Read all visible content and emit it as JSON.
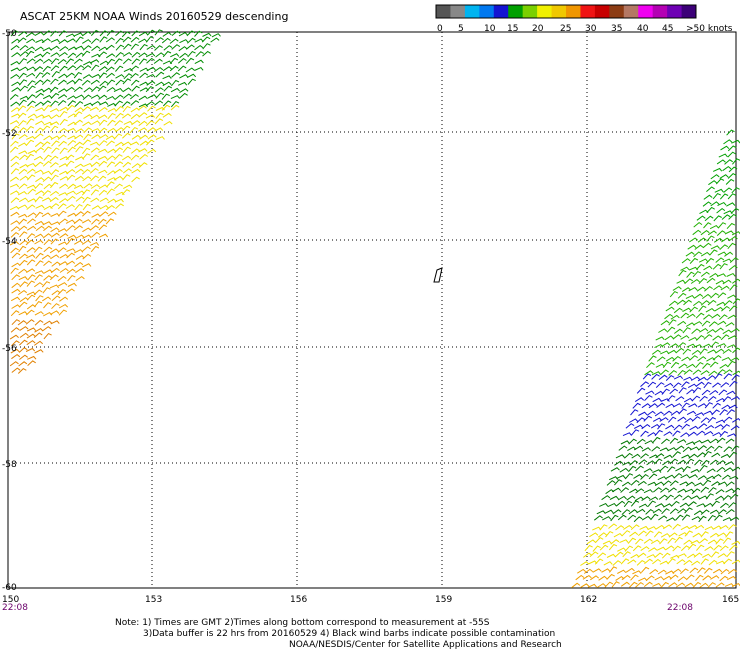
{
  "title": "ASCAT 25KM NOAA Winds 20160529 descending",
  "legend": {
    "colors": [
      "#555555",
      "#888888",
      "#00b4f0",
      "#0078f0",
      "#1414d2",
      "#00a000",
      "#7ad000",
      "#f0f000",
      "#f0c800",
      "#f09600",
      "#f01414",
      "#c80000",
      "#8c3c14",
      "#b47864",
      "#f000f0",
      "#b400b4",
      "#6e00b4",
      "#3c0078"
    ],
    "labels": [
      "0",
      "5",
      "10",
      "15",
      "20",
      "25",
      "30",
      "35",
      "40",
      "45",
      ">50 knots"
    ]
  },
  "axes": {
    "lon_labels": [
      "150",
      "153",
      "156",
      "159",
      "162",
      "165"
    ],
    "lat_labels": [
      "-50",
      "-52",
      "-54",
      "-56",
      "-58",
      "-60"
    ]
  },
  "times": {
    "left": "22:08",
    "right": "22:08"
  },
  "notes": [
    "Note: 1) Times are GMT 2)Times along bottom correspond to measurement at -55S",
    "3)Data buffer is 22 hrs from 20160529 4) Black wind barbs indicate possible contamination",
    "NOAA/NESDIS/Center for Satellite Applications and Research"
  ],
  "swaths": [
    {
      "name": "west-swath",
      "bands": [
        {
          "lat": [
            -50,
            -51.5
          ],
          "speed_knots": 15,
          "color": "#008c00"
        },
        {
          "lat": [
            -51.5,
            -53.5
          ],
          "speed_knots": 20,
          "color": "#f0e000"
        },
        {
          "lat": [
            -53.5,
            -55.5
          ],
          "speed_knots": 25,
          "color": "#f0a000"
        },
        {
          "lat": [
            -55.5,
            -56.5
          ],
          "speed_knots": 25,
          "color": "#e08000"
        }
      ]
    },
    {
      "name": "east-swath",
      "bands": [
        {
          "lat": [
            -52,
            -53.7
          ],
          "speed_knots": 15,
          "color": "#00a000"
        },
        {
          "lat": [
            -53.7,
            -56.5
          ],
          "speed_knots": 15,
          "color": "#20b000"
        },
        {
          "lat": [
            -56.5,
            -57.6
          ],
          "speed_knots": 10,
          "color": "#1414d2"
        },
        {
          "lat": [
            -57.6,
            -59
          ],
          "speed_knots": 15,
          "color": "#007800"
        },
        {
          "lat": [
            -59,
            -59.7
          ],
          "speed_knots": 20,
          "color": "#f0e000"
        },
        {
          "lat": [
            -59.7,
            -60
          ],
          "speed_knots": 25,
          "color": "#f0a000"
        }
      ]
    }
  ]
}
